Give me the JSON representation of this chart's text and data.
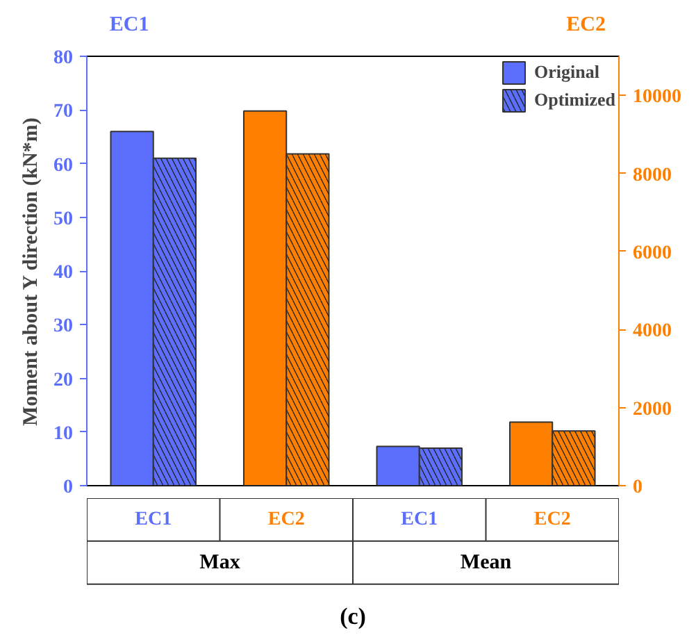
{
  "chart_data": {
    "type": "bar",
    "ylabel": "Moment about Y direction (kN*m)",
    "categories": [
      "EC1",
      "EC2",
      "EC1",
      "EC2"
    ],
    "series": [
      {
        "name": "Original",
        "color": "#5b6ffc",
        "values": [
          66,
          null,
          7.3,
          null
        ]
      },
      {
        "name": "Optimized",
        "color": "#5b6ffc",
        "values": [
          61,
          null,
          7.0,
          null
        ]
      },
      {
        "color": "#ff8000",
        "axis": "y2",
        "values": [
          null,
          9600,
          null,
          1630
        ]
      },
      {
        "color": "#ff8000",
        "axis": "y2",
        "values": [
          null,
          8500,
          null,
          1400
        ]
      }
    ],
    "ylim": [
      0,
      80
    ],
    "yticks": [
      0,
      10,
      20,
      30,
      40,
      50,
      60,
      70,
      80
    ],
    "y2lim": [
      0,
      11000
    ],
    "y2ticks": [
      0,
      2000,
      4000,
      6000,
      8000,
      10000
    ],
    "annotations": [
      "EC1",
      "EC2",
      "Max",
      "Mean",
      "(c)"
    ],
    "legend": "top right",
    "grid": false
  }
}
